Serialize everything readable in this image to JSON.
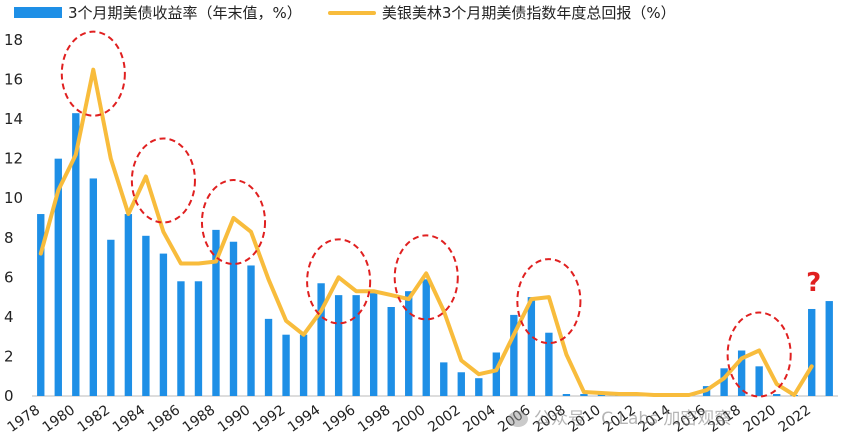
{
  "chart_data": {
    "type": "bar",
    "legend": {
      "placement": "top-left",
      "bar_label": "3个月期美债收益率（年末值，%）",
      "line_label": "美银美林3个月期美债指数年度总回报（%）"
    },
    "ylim": [
      0,
      18
    ],
    "yticks": [
      "0",
      "2",
      "4",
      "6",
      "8",
      "10",
      "12",
      "14",
      "16",
      "18"
    ],
    "xlabels": [
      "1978",
      "1980",
      "1982",
      "1984",
      "1986",
      "1988",
      "1990",
      "1992",
      "1994",
      "1996",
      "1998",
      "2000",
      "2002",
      "2004",
      "2006",
      "2008",
      "2010",
      "2012",
      "2014",
      "2016",
      "2018",
      "2020",
      "2022"
    ],
    "years": [
      1978,
      1979,
      1980,
      1981,
      1982,
      1983,
      1984,
      1985,
      1986,
      1987,
      1988,
      1989,
      1990,
      1991,
      1992,
      1993,
      1994,
      1995,
      1996,
      1997,
      1998,
      1999,
      2000,
      2001,
      2002,
      2003,
      2004,
      2005,
      2006,
      2007,
      2008,
      2009,
      2010,
      2011,
      2012,
      2013,
      2014,
      2015,
      2016,
      2017,
      2018,
      2019,
      2020,
      2021,
      2022,
      2023
    ],
    "series": [
      {
        "name": "3个月期美债收益率（年末值，%）",
        "kind": "bar",
        "values": [
          9.2,
          12.0,
          14.3,
          11.0,
          7.9,
          9.2,
          8.1,
          7.2,
          5.8,
          5.8,
          8.4,
          7.8,
          6.6,
          3.9,
          3.1,
          3.1,
          5.7,
          5.1,
          5.1,
          5.2,
          4.5,
          5.3,
          5.9,
          1.7,
          1.2,
          0.9,
          2.2,
          4.1,
          5.0,
          3.2,
          0.1,
          0.1,
          0.1,
          0.05,
          0.05,
          0.05,
          0.05,
          0.1,
          0.5,
          1.4,
          2.3,
          1.5,
          0.1,
          0.05,
          4.4,
          4.8
        ]
      },
      {
        "name": "美银美林3个月期美债指数年度总回报（%）",
        "kind": "line",
        "values": [
          7.2,
          10.4,
          12.2,
          16.5,
          12.0,
          9.2,
          11.1,
          8.3,
          6.7,
          6.7,
          6.8,
          9.0,
          8.3,
          5.9,
          3.8,
          3.1,
          4.3,
          6.0,
          5.3,
          5.3,
          5.1,
          4.9,
          6.2,
          4.3,
          1.8,
          1.1,
          1.3,
          3.1,
          4.9,
          5.0,
          2.1,
          0.2,
          0.15,
          0.1,
          0.1,
          0.05,
          0.05,
          0.05,
          0.3,
          0.9,
          1.9,
          2.3,
          0.6,
          0.05,
          1.5,
          null
        ]
      }
    ],
    "highlight_circles": [
      1981,
      1985,
      1989,
      1995,
      2000,
      2007,
      2019
    ],
    "annotation": "?",
    "colors": {
      "bar": "#1E8FE6",
      "line": "#F8BC3C",
      "circle": "#E02020",
      "question_mark": "#E02020"
    }
  },
  "watermark": "公众号 · C Labs 加密观察"
}
